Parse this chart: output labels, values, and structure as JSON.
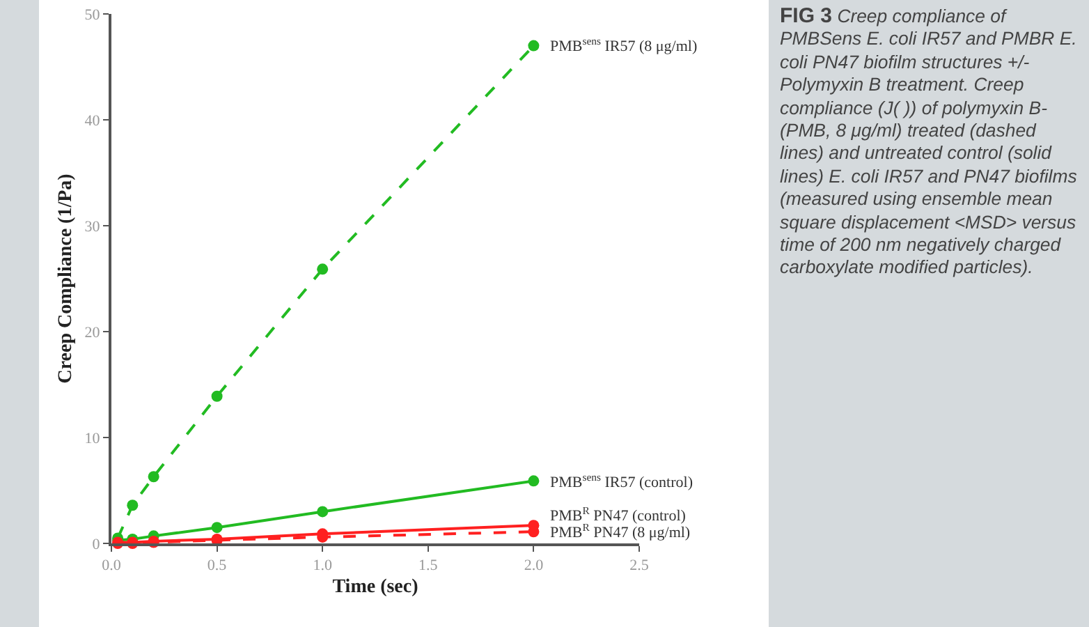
{
  "chart_data": {
    "type": "line",
    "title": "FIG 3",
    "annotations": [
      "Creep compliance of PMBSens E. coli IR57 and PMBR E. coli PN47 biofilm structures +/- Polymyxin B treatment. Creep compliance (J( )) of polymyxin B- (PMB, 8 μg/ml) treated (dashed lines) and untreated control (solid lines) E. coli IR57 and PN47 biofilms (measured using ensemble mean square displacement <MSD> versus time of 200 nm negatively charged carboxylate modified particles)."
    ],
    "xlabel": "Time (sec)",
    "ylabel": "Creep Compliance (1/Pa)",
    "x": [
      0.03,
      0.1,
      0.2,
      0.5,
      1.0,
      2.0
    ],
    "series": [
      {
        "name": "PMB$^{sens}$ IR57 (8 μg/ml)",
        "color": "#22bb22",
        "line_style": "dashed",
        "values": [
          0.5,
          3.6,
          6.3,
          13.9,
          25.9,
          47.0
        ]
      },
      {
        "name": "PMB$^{sens}$ IR57 (control)",
        "color": "#22bb22",
        "line_style": "solid",
        "values": [
          0.3,
          0.4,
          0.7,
          1.5,
          3.0,
          5.9
        ]
      },
      {
        "name": "PMB$^{R}$ PN47 (control)",
        "color": "#ff2020",
        "line_style": "solid",
        "values": [
          0.1,
          0.1,
          0.2,
          0.4,
          0.9,
          1.7
        ]
      },
      {
        "name": "PMB$^{R}$ PN47 (8 μg/ml)",
        "color": "#ff2020",
        "line_style": "dashed",
        "values": [
          0.0,
          0.0,
          0.1,
          0.3,
          0.6,
          1.1
        ]
      }
    ],
    "xlim": [
      0,
      2.5
    ],
    "xticks": [
      {
        "value": 0,
        "label": "0.0"
      },
      0.5,
      {
        "value": 1,
        "label": "1.0"
      },
      1.5,
      {
        "value": 2,
        "label": "2.0"
      },
      2.5
    ],
    "ylim": [
      0,
      50
    ],
    "yticks": [
      0,
      10,
      20,
      30,
      40,
      50
    ],
    "grid": false,
    "legend": false,
    "marker": "circle"
  }
}
